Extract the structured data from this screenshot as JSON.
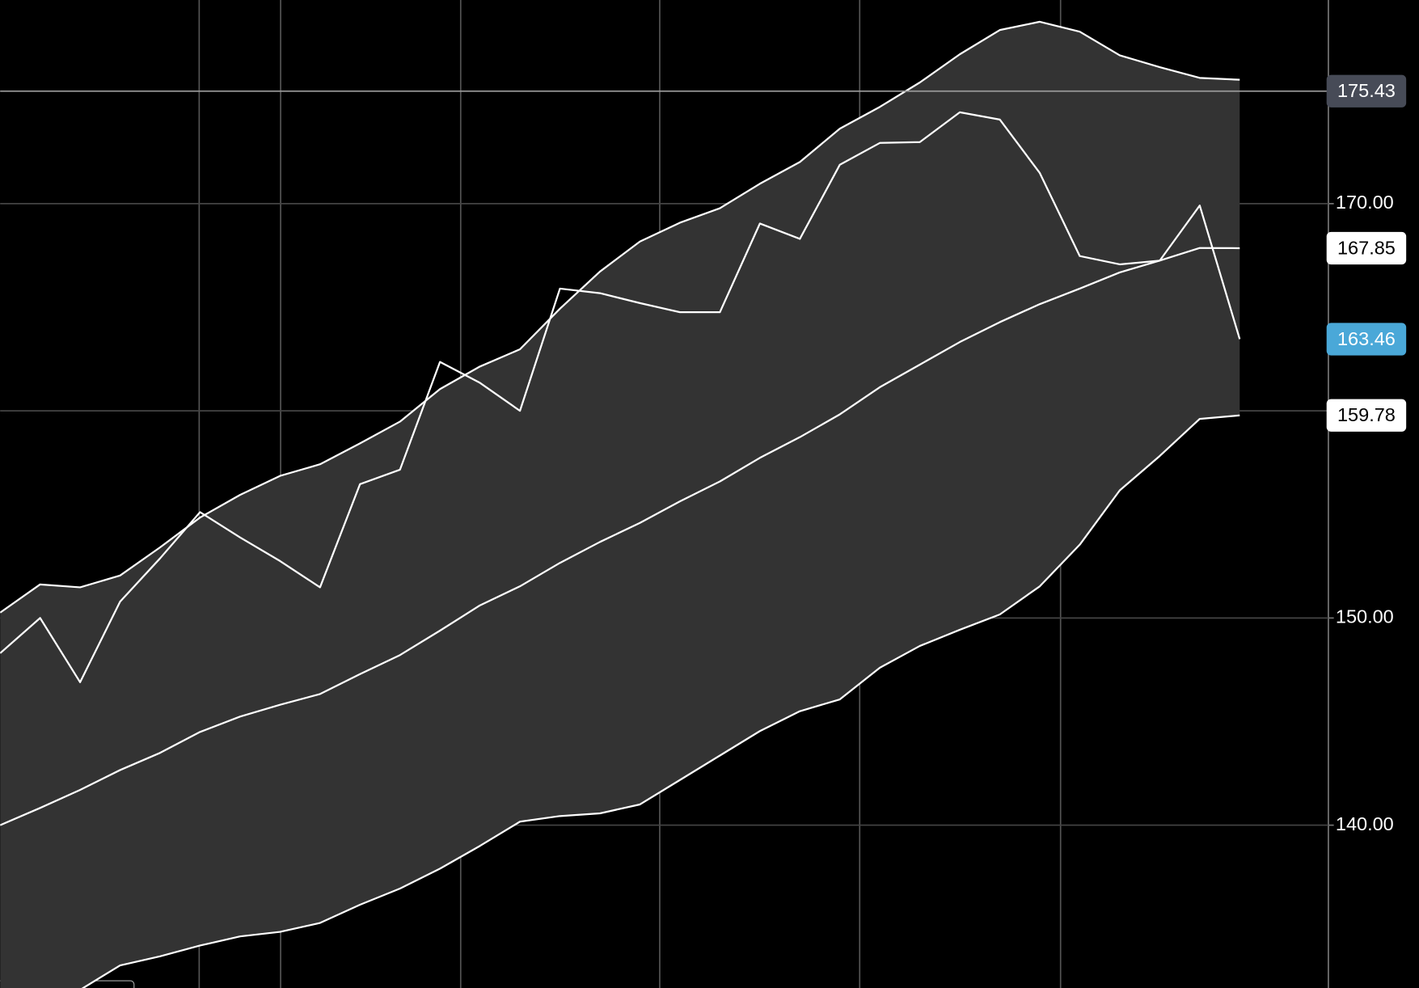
{
  "chart_data": {
    "type": "line",
    "categories": [
      null,
      null,
      null,
      null,
      null,
      null,
      null,
      null,
      null,
      null,
      null,
      null,
      null,
      null,
      null,
      null,
      null,
      null,
      null,
      null,
      null,
      null,
      null,
      null,
      null,
      null,
      null,
      null,
      null,
      null,
      null,
      null
    ],
    "series": [
      {
        "color": "#ffffff",
        "values": [
          150.26,
          151.62,
          151.48,
          152.05,
          153.41,
          154.85,
          155.94,
          156.86,
          157.42,
          158.43,
          159.48,
          161.05,
          162.14,
          162.97,
          164.93,
          166.72,
          168.17,
          169.08,
          169.78,
          170.96,
          172.01,
          173.62,
          174.67,
          175.85,
          177.21,
          178.38,
          178.78,
          178.3,
          177.16,
          176.59,
          176.07,
          175.98
        ]
      },
      {
        "color": "#ffffff",
        "values": [
          140.0,
          140.83,
          141.7,
          142.66,
          143.49,
          144.5,
          145.24,
          145.81,
          146.33,
          147.29,
          148.21,
          149.39,
          150.61,
          151.53,
          152.66,
          153.67,
          154.59,
          155.63,
          156.59,
          157.73,
          158.73,
          159.83,
          161.14,
          162.23,
          163.32,
          164.28,
          165.15,
          165.9,
          166.68,
          167.25,
          167.86,
          167.85
        ]
      },
      {
        "color": "#ffffff",
        "values": [
          129.83,
          130.92,
          132.05,
          133.23,
          133.67,
          134.19,
          134.63,
          134.85,
          135.28,
          136.16,
          136.94,
          137.9,
          139.0,
          140.17,
          140.44,
          140.57,
          141.0,
          142.18,
          143.36,
          144.54,
          145.5,
          146.07,
          147.6,
          148.65,
          149.43,
          150.17,
          151.53,
          153.54,
          156.16,
          157.82,
          159.61,
          159.78
        ]
      },
      {
        "color": "#ffffff",
        "values": [
          148.3,
          150.0,
          146.9,
          150.79,
          152.88,
          155.11,
          153.89,
          152.75,
          151.48,
          156.46,
          157.16,
          162.36,
          161.35,
          160.0,
          165.9,
          165.68,
          165.2,
          164.76,
          164.76,
          169.04,
          168.3,
          171.88,
          172.93,
          172.97,
          174.41,
          174.06,
          171.48,
          167.47,
          167.07,
          167.25,
          169.91,
          163.46
        ]
      }
    ],
    "band_fill": "#333333",
    "ylim": [
      132.14,
      179.83
    ],
    "yticks": [
      {
        "value": 140,
        "label": "140.00"
      },
      {
        "value": 150,
        "label": "150.00"
      },
      {
        "value": 160,
        "label": null
      },
      {
        "value": 170,
        "label": "170.00"
      }
    ],
    "grid": true,
    "price_labels": [
      {
        "value": 175.43,
        "background": "#474b57",
        "text_color": "#ffffff",
        "crosshair": true
      },
      {
        "value": 167.85,
        "background": "#ffffff",
        "text_color": "#000000"
      },
      {
        "value": 163.46,
        "background": "#4aa8d8",
        "text_color": "#ffffff"
      },
      {
        "value": 159.78,
        "background": "#ffffff",
        "text_color": "#000000"
      }
    ]
  }
}
